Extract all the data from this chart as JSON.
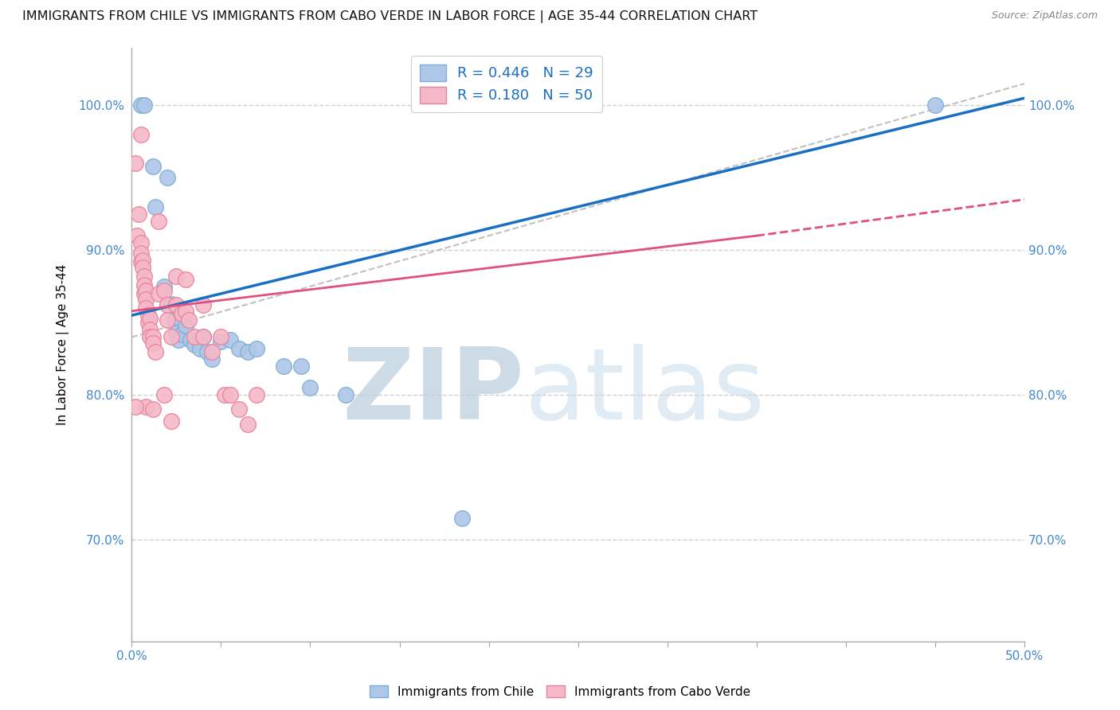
{
  "title": "IMMIGRANTS FROM CHILE VS IMMIGRANTS FROM CABO VERDE IN LABOR FORCE | AGE 35-44 CORRELATION CHART",
  "source": "Source: ZipAtlas.com",
  "ylabel": "In Labor Force | Age 35-44",
  "xlim": [
    0.0,
    0.5
  ],
  "ylim": [
    0.63,
    1.04
  ],
  "xticks": [
    0.0,
    0.05,
    0.1,
    0.15,
    0.2,
    0.25,
    0.3,
    0.35,
    0.4,
    0.45,
    0.5
  ],
  "xticklabels": [
    "0.0%",
    "",
    "",
    "",
    "",
    "",
    "",
    "",
    "",
    "",
    "50.0%"
  ],
  "yticks": [
    0.7,
    0.8,
    0.9,
    1.0
  ],
  "yticklabels_left": [
    "70.0%",
    "80.0%",
    "90.0%",
    "100.0%"
  ],
  "yticklabels_right": [
    "70.0%",
    "80.0%",
    "90.0%",
    "100.0%"
  ],
  "legend_top": [
    {
      "label": "R = 0.446   N = 29",
      "facecolor": "#aec6e8",
      "edgecolor": "#7bafd4"
    },
    {
      "label": "R = 0.180   N = 50",
      "facecolor": "#f5b8c8",
      "edgecolor": "#e8849a"
    }
  ],
  "chile_dots": [
    [
      0.005,
      1.0
    ],
    [
      0.007,
      1.0
    ],
    [
      0.012,
      0.958
    ],
    [
      0.013,
      0.93
    ],
    [
      0.02,
      0.95
    ],
    [
      0.018,
      0.875
    ],
    [
      0.022,
      0.863
    ],
    [
      0.024,
      0.852
    ],
    [
      0.025,
      0.843
    ],
    [
      0.026,
      0.838
    ],
    [
      0.028,
      0.842
    ],
    [
      0.03,
      0.848
    ],
    [
      0.033,
      0.838
    ],
    [
      0.035,
      0.835
    ],
    [
      0.038,
      0.832
    ],
    [
      0.04,
      0.84
    ],
    [
      0.042,
      0.83
    ],
    [
      0.045,
      0.825
    ],
    [
      0.05,
      0.837
    ],
    [
      0.055,
      0.838
    ],
    [
      0.06,
      0.832
    ],
    [
      0.065,
      0.83
    ],
    [
      0.07,
      0.832
    ],
    [
      0.085,
      0.82
    ],
    [
      0.095,
      0.82
    ],
    [
      0.1,
      0.805
    ],
    [
      0.12,
      0.8
    ],
    [
      0.185,
      0.715
    ],
    [
      0.45,
      1.0
    ]
  ],
  "caboverde_dots": [
    [
      0.002,
      0.96
    ],
    [
      0.003,
      0.91
    ],
    [
      0.004,
      0.925
    ],
    [
      0.005,
      0.905
    ],
    [
      0.005,
      0.898
    ],
    [
      0.005,
      0.892
    ],
    [
      0.006,
      0.893
    ],
    [
      0.006,
      0.888
    ],
    [
      0.007,
      0.882
    ],
    [
      0.007,
      0.876
    ],
    [
      0.007,
      0.87
    ],
    [
      0.008,
      0.872
    ],
    [
      0.008,
      0.866
    ],
    [
      0.008,
      0.86
    ],
    [
      0.009,
      0.855
    ],
    [
      0.009,
      0.85
    ],
    [
      0.01,
      0.853
    ],
    [
      0.01,
      0.845
    ],
    [
      0.01,
      0.84
    ],
    [
      0.012,
      0.84
    ],
    [
      0.012,
      0.836
    ],
    [
      0.013,
      0.83
    ],
    [
      0.015,
      0.92
    ],
    [
      0.015,
      0.87
    ],
    [
      0.018,
      0.872
    ],
    [
      0.02,
      0.862
    ],
    [
      0.02,
      0.852
    ],
    [
      0.022,
      0.84
    ],
    [
      0.025,
      0.882
    ],
    [
      0.025,
      0.862
    ],
    [
      0.028,
      0.856
    ],
    [
      0.03,
      0.88
    ],
    [
      0.03,
      0.858
    ],
    [
      0.032,
      0.852
    ],
    [
      0.035,
      0.84
    ],
    [
      0.04,
      0.862
    ],
    [
      0.04,
      0.84
    ],
    [
      0.045,
      0.83
    ],
    [
      0.05,
      0.84
    ],
    [
      0.052,
      0.8
    ],
    [
      0.055,
      0.8
    ],
    [
      0.06,
      0.79
    ],
    [
      0.065,
      0.78
    ],
    [
      0.07,
      0.8
    ],
    [
      0.008,
      0.792
    ],
    [
      0.012,
      0.79
    ],
    [
      0.018,
      0.8
    ],
    [
      0.022,
      0.782
    ],
    [
      0.002,
      0.792
    ],
    [
      0.005,
      0.98
    ]
  ],
  "blue_line": {
    "x0": 0.0,
    "y0": 0.855,
    "x1": 0.5,
    "y1": 1.005
  },
  "pink_line": {
    "x0": 0.0,
    "y0": 0.858,
    "x1": 0.35,
    "y1": 0.91
  },
  "pink_line_dashed": {
    "x0": 0.35,
    "y0": 0.91,
    "x1": 0.5,
    "y1": 0.935
  },
  "gray_dashed_line": {
    "x0": 0.0,
    "y0": 0.84,
    "x1": 0.5,
    "y1": 1.015
  },
  "blue_line_color": "#1a6fc4",
  "pink_line_color": "#e05080",
  "gray_dashed_color": "#c0c0c0",
  "dot_blue_face": "#aec6e8",
  "dot_blue_edge": "#7bafd4",
  "dot_pink_face": "#f5b8c8",
  "dot_pink_edge": "#e8849a",
  "background_color": "#ffffff",
  "grid_color": "#d0d0d0",
  "axis_label_color": "#4488cc",
  "watermark_zip": "ZIP",
  "watermark_atlas": "atlas",
  "watermark_color": "#d0dff0"
}
